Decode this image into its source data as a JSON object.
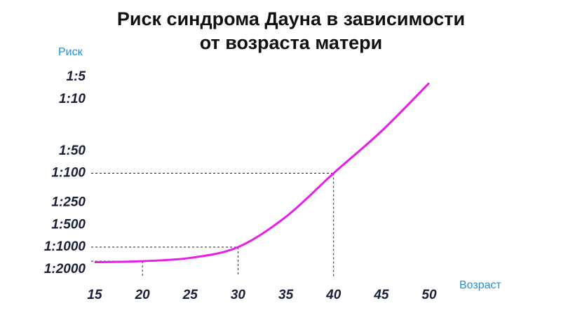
{
  "chart_data": {
    "type": "line",
    "title": "Риск синдрома Дауна в зависимости от возраста матери",
    "y_label": "Риск",
    "x_label": "Возраст",
    "x": [
      15,
      20,
      25,
      30,
      35,
      40,
      45,
      50
    ],
    "series": [
      {
        "values": [
          1600,
          1550,
          1400,
          1000,
          390,
          100,
          27,
          6
        ],
        "color": "#e81ee8"
      }
    ],
    "xlim": [
      15,
      50
    ],
    "xticks": [
      15,
      20,
      25,
      30,
      35,
      40,
      45,
      50
    ],
    "ylim": [
      2500,
      4
    ],
    "y_scale": "log",
    "yticks": [
      {
        "value": 5,
        "label": "1:5"
      },
      {
        "value": 10,
        "label": "1:10"
      },
      {
        "value": 50,
        "label": "1:50"
      },
      {
        "value": 100,
        "label": "1:100"
      },
      {
        "value": 250,
        "label": "1:250"
      },
      {
        "value": 500,
        "label": "1:500"
      },
      {
        "value": 1000,
        "label": "1:1000"
      },
      {
        "value": 2000,
        "label": "1:2000"
      }
    ],
    "guide_x": [
      20,
      30,
      40
    ]
  }
}
